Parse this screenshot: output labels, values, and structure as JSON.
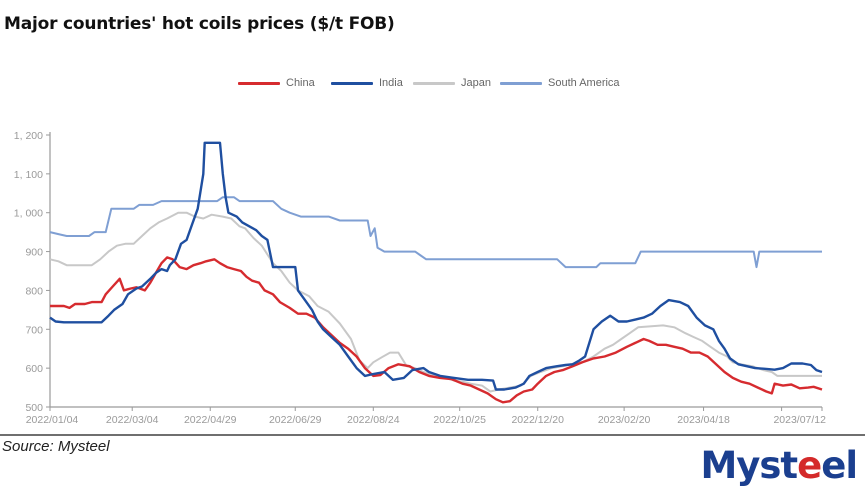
{
  "title": "Major countries' hot coils prices ($/t FOB)",
  "source": "Source: Mysteel",
  "logo": {
    "text": "Mysteel",
    "parts": [
      "Myst",
      "e",
      "el"
    ]
  },
  "legend": [
    {
      "label": "China",
      "color": "#d62b2f"
    },
    {
      "label": "India",
      "color": "#1f4fa0"
    },
    {
      "label": "Japan",
      "color": "#c8c8c8"
    },
    {
      "label": "South America",
      "color": "#7f9fd3"
    }
  ],
  "chart_data": {
    "type": "line",
    "title": "Major countries' hot coils prices ($/t FOB)",
    "xlabel": "",
    "ylabel": "",
    "x_unit": "days since 2022/01/04",
    "xlim": [
      0,
      554
    ],
    "ylim": [
      500,
      1200
    ],
    "yticks": [
      500,
      600,
      700,
      800,
      900,
      1000,
      1100,
      1200
    ],
    "ytick_labels": [
      "500",
      "600",
      "700",
      "800",
      "900",
      "1, 000",
      "1, 100",
      "1, 200"
    ],
    "xticks": [
      0,
      59,
      115,
      176,
      232,
      294,
      350,
      412,
      469,
      525,
      554
    ],
    "xtick_labels": [
      "2022/01/04",
      "2022/03/04",
      "2022/04/29",
      "2022/06/29",
      "2022/08/24",
      "2022/10/25",
      "2022/12/20",
      "2023/02/20",
      "2023/04/18",
      "",
      "2023/07/12"
    ],
    "legend_position": "top",
    "grid": false,
    "series": [
      {
        "name": "China",
        "color": "#d62b2f",
        "points": [
          [
            0,
            760
          ],
          [
            10,
            760
          ],
          [
            14,
            755
          ],
          [
            18,
            765
          ],
          [
            25,
            765
          ],
          [
            30,
            770
          ],
          [
            37,
            770
          ],
          [
            40,
            790
          ],
          [
            45,
            810
          ],
          [
            50,
            830
          ],
          [
            53,
            800
          ],
          [
            58,
            805
          ],
          [
            62,
            808
          ],
          [
            68,
            800
          ],
          [
            72,
            820
          ],
          [
            76,
            845
          ],
          [
            80,
            870
          ],
          [
            84,
            885
          ],
          [
            88,
            880
          ],
          [
            93,
            860
          ],
          [
            98,
            855
          ],
          [
            103,
            865
          ],
          [
            108,
            870
          ],
          [
            112,
            875
          ],
          [
            118,
            880
          ],
          [
            122,
            870
          ],
          [
            127,
            860
          ],
          [
            132,
            855
          ],
          [
            137,
            850
          ],
          [
            141,
            835
          ],
          [
            145,
            825
          ],
          [
            150,
            820
          ],
          [
            154,
            800
          ],
          [
            160,
            790
          ],
          [
            165,
            770
          ],
          [
            172,
            755
          ],
          [
            178,
            740
          ],
          [
            184,
            740
          ],
          [
            190,
            730
          ],
          [
            196,
            705
          ],
          [
            202,
            685
          ],
          [
            208,
            665
          ],
          [
            214,
            650
          ],
          [
            220,
            630
          ],
          [
            226,
            600
          ],
          [
            232,
            580
          ],
          [
            237,
            582
          ],
          [
            243,
            600
          ],
          [
            250,
            610
          ],
          [
            258,
            605
          ],
          [
            265,
            590
          ],
          [
            272,
            580
          ],
          [
            280,
            575
          ],
          [
            288,
            572
          ],
          [
            296,
            560
          ],
          [
            302,
            555
          ],
          [
            308,
            545
          ],
          [
            314,
            535
          ],
          [
            320,
            520
          ],
          [
            325,
            512
          ],
          [
            330,
            515
          ],
          [
            335,
            530
          ],
          [
            340,
            540
          ],
          [
            346,
            545
          ],
          [
            350,
            560
          ],
          [
            356,
            580
          ],
          [
            362,
            590
          ],
          [
            368,
            595
          ],
          [
            375,
            605
          ],
          [
            382,
            615
          ],
          [
            390,
            625
          ],
          [
            398,
            630
          ],
          [
            406,
            640
          ],
          [
            414,
            655
          ],
          [
            420,
            665
          ],
          [
            426,
            675
          ],
          [
            430,
            670
          ],
          [
            436,
            660
          ],
          [
            442,
            660
          ],
          [
            448,
            655
          ],
          [
            454,
            650
          ],
          [
            460,
            640
          ],
          [
            466,
            640
          ],
          [
            472,
            630
          ],
          [
            478,
            610
          ],
          [
            484,
            590
          ],
          [
            490,
            575
          ],
          [
            496,
            565
          ],
          [
            502,
            560
          ],
          [
            508,
            550
          ],
          [
            514,
            540
          ],
          [
            518,
            535
          ],
          [
            520,
            560
          ],
          [
            526,
            555
          ],
          [
            532,
            558
          ],
          [
            538,
            548
          ],
          [
            544,
            550
          ],
          [
            548,
            552
          ],
          [
            554,
            545
          ]
        ]
      },
      {
        "name": "India",
        "color": "#1f4fa0",
        "points": [
          [
            0,
            730
          ],
          [
            4,
            720
          ],
          [
            10,
            718
          ],
          [
            37,
            718
          ],
          [
            42,
            735
          ],
          [
            46,
            750
          ],
          [
            52,
            765
          ],
          [
            56,
            790
          ],
          [
            62,
            805
          ],
          [
            66,
            810
          ],
          [
            72,
            830
          ],
          [
            76,
            845
          ],
          [
            80,
            855
          ],
          [
            84,
            850
          ],
          [
            86,
            865
          ],
          [
            90,
            880
          ],
          [
            94,
            920
          ],
          [
            98,
            930
          ],
          [
            102,
            970
          ],
          [
            106,
            1010
          ],
          [
            110,
            1100
          ],
          [
            111,
            1180
          ],
          [
            122,
            1180
          ],
          [
            124,
            1100
          ],
          [
            126,
            1040
          ],
          [
            128,
            1000
          ],
          [
            134,
            990
          ],
          [
            138,
            975
          ],
          [
            148,
            955
          ],
          [
            152,
            940
          ],
          [
            156,
            930
          ],
          [
            160,
            860
          ],
          [
            176,
            860
          ],
          [
            178,
            800
          ],
          [
            182,
            780
          ],
          [
            188,
            750
          ],
          [
            192,
            720
          ],
          [
            196,
            700
          ],
          [
            202,
            680
          ],
          [
            208,
            660
          ],
          [
            214,
            630
          ],
          [
            220,
            600
          ],
          [
            226,
            580
          ],
          [
            232,
            585
          ],
          [
            240,
            590
          ],
          [
            246,
            570
          ],
          [
            254,
            575
          ],
          [
            260,
            595
          ],
          [
            268,
            600
          ],
          [
            272,
            590
          ],
          [
            280,
            580
          ],
          [
            290,
            575
          ],
          [
            300,
            570
          ],
          [
            310,
            570
          ],
          [
            318,
            568
          ],
          [
            320,
            545
          ],
          [
            326,
            545
          ],
          [
            334,
            550
          ],
          [
            340,
            560
          ],
          [
            344,
            580
          ],
          [
            350,
            590
          ],
          [
            356,
            600
          ],
          [
            364,
            605
          ],
          [
            370,
            608
          ],
          [
            375,
            610
          ],
          [
            380,
            620
          ],
          [
            384,
            630
          ],
          [
            390,
            700
          ],
          [
            396,
            720
          ],
          [
            402,
            735
          ],
          [
            408,
            720
          ],
          [
            414,
            720
          ],
          [
            420,
            725
          ],
          [
            426,
            730
          ],
          [
            432,
            740
          ],
          [
            438,
            760
          ],
          [
            444,
            775
          ],
          [
            452,
            770
          ],
          [
            458,
            760
          ],
          [
            464,
            730
          ],
          [
            470,
            710
          ],
          [
            476,
            700
          ],
          [
            480,
            670
          ],
          [
            484,
            650
          ],
          [
            488,
            625
          ],
          [
            494,
            610
          ],
          [
            500,
            605
          ],
          [
            506,
            600
          ],
          [
            514,
            598
          ],
          [
            520,
            596
          ],
          [
            526,
            600
          ],
          [
            532,
            612
          ],
          [
            540,
            612
          ],
          [
            546,
            608
          ],
          [
            550,
            595
          ],
          [
            554,
            590
          ]
        ]
      },
      {
        "name": "Japan",
        "color": "#c8c8c8",
        "points": [
          [
            0,
            880
          ],
          [
            6,
            875
          ],
          [
            12,
            865
          ],
          [
            30,
            865
          ],
          [
            36,
            880
          ],
          [
            42,
            900
          ],
          [
            48,
            915
          ],
          [
            54,
            920
          ],
          [
            60,
            920
          ],
          [
            66,
            940
          ],
          [
            72,
            960
          ],
          [
            78,
            975
          ],
          [
            84,
            985
          ],
          [
            92,
            1000
          ],
          [
            98,
            1000
          ],
          [
            104,
            990
          ],
          [
            110,
            985
          ],
          [
            116,
            995
          ],
          [
            124,
            990
          ],
          [
            130,
            985
          ],
          [
            136,
            965
          ],
          [
            140,
            960
          ],
          [
            146,
            935
          ],
          [
            152,
            915
          ],
          [
            160,
            870
          ],
          [
            166,
            850
          ],
          [
            172,
            820
          ],
          [
            178,
            800
          ],
          [
            186,
            785
          ],
          [
            192,
            760
          ],
          [
            200,
            745
          ],
          [
            208,
            715
          ],
          [
            216,
            675
          ],
          [
            222,
            620
          ],
          [
            228,
            600
          ],
          [
            232,
            615
          ],
          [
            238,
            628
          ],
          [
            244,
            640
          ],
          [
            250,
            640
          ],
          [
            256,
            605
          ],
          [
            262,
            600
          ],
          [
            268,
            590
          ],
          [
            276,
            580
          ],
          [
            284,
            575
          ],
          [
            290,
            568
          ],
          [
            296,
            565
          ],
          [
            302,
            560
          ],
          [
            310,
            555
          ],
          [
            316,
            540
          ],
          [
            322,
            545
          ],
          [
            330,
            550
          ],
          [
            338,
            555
          ],
          [
            345,
            580
          ],
          [
            352,
            590
          ],
          [
            360,
            600
          ],
          [
            368,
            605
          ],
          [
            376,
            612
          ],
          [
            382,
            615
          ],
          [
            390,
            630
          ],
          [
            398,
            650
          ],
          [
            404,
            660
          ],
          [
            410,
            675
          ],
          [
            416,
            690
          ],
          [
            422,
            705
          ],
          [
            440,
            710
          ],
          [
            448,
            705
          ],
          [
            456,
            690
          ],
          [
            462,
            680
          ],
          [
            468,
            670
          ],
          [
            474,
            655
          ],
          [
            480,
            640
          ],
          [
            486,
            630
          ],
          [
            490,
            615
          ],
          [
            496,
            610
          ],
          [
            504,
            605
          ],
          [
            512,
            595
          ],
          [
            518,
            590
          ],
          [
            522,
            580
          ],
          [
            554,
            580
          ]
        ]
      },
      {
        "name": "South America",
        "color": "#7f9fd3",
        "points": [
          [
            0,
            950
          ],
          [
            6,
            945
          ],
          [
            12,
            940
          ],
          [
            28,
            940
          ],
          [
            32,
            950
          ],
          [
            40,
            950
          ],
          [
            44,
            1010
          ],
          [
            60,
            1010
          ],
          [
            64,
            1020
          ],
          [
            74,
            1020
          ],
          [
            80,
            1030
          ],
          [
            120,
            1030
          ],
          [
            124,
            1040
          ],
          [
            132,
            1040
          ],
          [
            136,
            1030
          ],
          [
            160,
            1030
          ],
          [
            166,
            1010
          ],
          [
            172,
            1000
          ],
          [
            180,
            990
          ],
          [
            200,
            990
          ],
          [
            208,
            980
          ],
          [
            228,
            980
          ],
          [
            230,
            940
          ],
          [
            233,
            960
          ],
          [
            235,
            910
          ],
          [
            240,
            900
          ],
          [
            262,
            900
          ],
          [
            266,
            890
          ],
          [
            270,
            880
          ],
          [
            364,
            880
          ],
          [
            370,
            860
          ],
          [
            392,
            860
          ],
          [
            395,
            870
          ],
          [
            420,
            870
          ],
          [
            424,
            900
          ],
          [
            505,
            900
          ],
          [
            507,
            860
          ],
          [
            509,
            900
          ],
          [
            554,
            900
          ]
        ]
      }
    ]
  }
}
